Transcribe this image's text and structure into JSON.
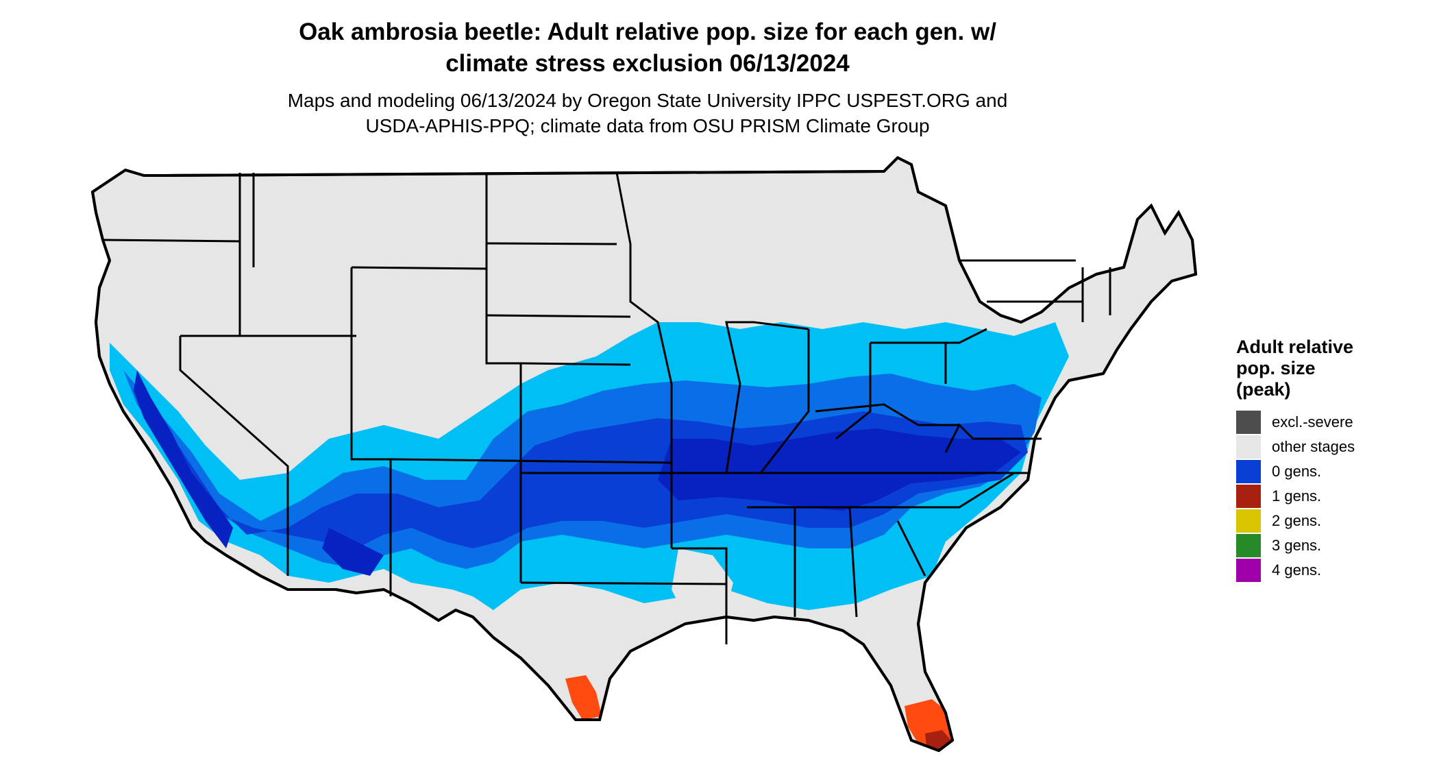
{
  "title": {
    "line1": "Oak ambrosia beetle: Adult relative pop. size for each gen. w/",
    "line2": "climate stress exclusion 06/13/2024"
  },
  "subtitle": {
    "line1": "Maps and modeling 06/13/2024 by Oregon State University IPPC USPEST.ORG and",
    "line2": "USDA-APHIS-PPQ; climate data from OSU PRISM Climate Group"
  },
  "legend": {
    "title_line1": "Adult relative",
    "title_line2": "pop. size",
    "title_line3": "(peak)",
    "items": [
      {
        "label": "excl.-severe",
        "color": "#4d4d4d"
      },
      {
        "label": "other stages",
        "color": "#e6e6e6"
      },
      {
        "label": "0 gens.",
        "color": "#0a3fd6"
      },
      {
        "label": "1 gens.",
        "color": "#a8200f"
      },
      {
        "label": "2 gens.",
        "color": "#d9c400"
      },
      {
        "label": "3 gens.",
        "color": "#268a26"
      },
      {
        "label": "4 gens.",
        "color": "#a000a8"
      }
    ]
  },
  "colors": {
    "land": "#e6e6e6",
    "light_blue": "#00bff5",
    "mid_blue": "#0a6ee6",
    "dark_blue": "#0a3fd6",
    "deep_blue": "#0822c2",
    "orange": "#ff4a10",
    "dark_red": "#a8200f",
    "border": "#000000"
  }
}
